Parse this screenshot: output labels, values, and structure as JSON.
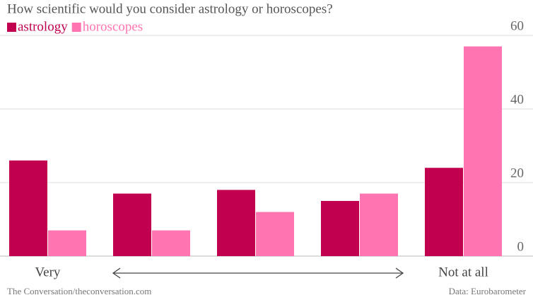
{
  "chart_data": {
    "type": "bar",
    "title": "How scientific would you consider astrology or horoscopes?",
    "categories": [
      "Very",
      null,
      null,
      null,
      "Not at all"
    ],
    "series": [
      {
        "name": "astrology",
        "color": "#c1004f",
        "values": [
          26,
          17,
          18,
          15,
          24
        ]
      },
      {
        "name": "horoscopes",
        "color": "#ff74b1",
        "values": [
          7,
          7,
          12,
          17,
          57
        ]
      }
    ],
    "ylim": [
      0,
      60
    ],
    "yticks": [
      0,
      20,
      40,
      60
    ],
    "grid": true,
    "source": "The Conversation/theconversation.com",
    "credit": "Data: Eurobarometer"
  }
}
